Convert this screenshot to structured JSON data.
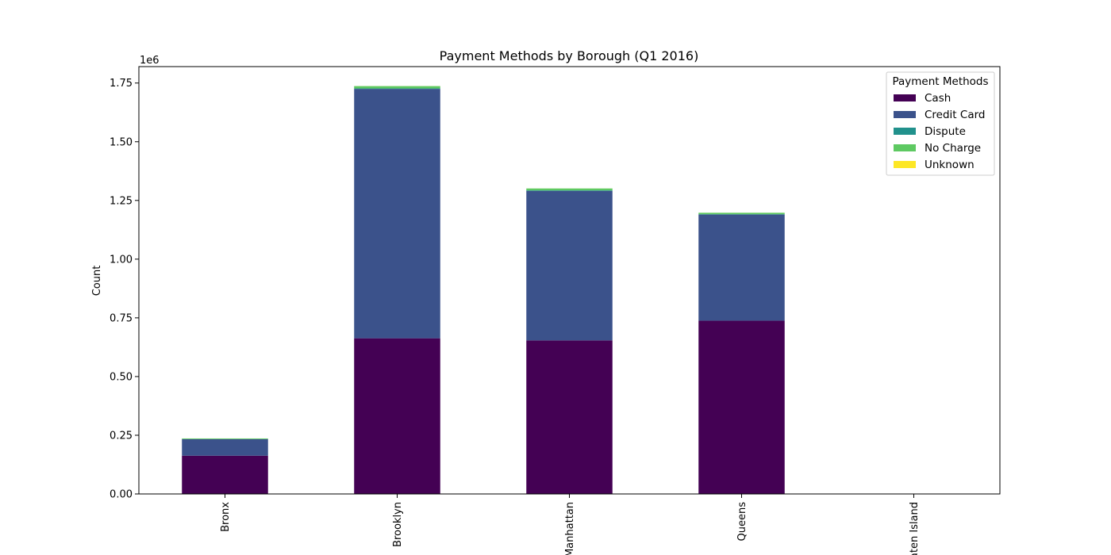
{
  "chart_data": {
    "type": "bar",
    "stacked": true,
    "title": "Payment Methods by Borough (Q1 2016)",
    "xlabel": "",
    "ylabel": "Count",
    "y_offset_text": "1e6",
    "ylim": [
      0,
      1820000
    ],
    "yticks": [
      0,
      250000,
      500000,
      750000,
      1000000,
      1250000,
      1500000,
      1750000
    ],
    "ytick_labels": [
      "0.00",
      "0.25",
      "0.50",
      "0.75",
      "1.00",
      "1.25",
      "1.50",
      "1.75"
    ],
    "categories": [
      "Bronx",
      "Brooklyn",
      "Manhattan",
      "Queens",
      "Staten Island"
    ],
    "series": [
      {
        "name": "Cash",
        "color": "#440154",
        "values": [
          163000,
          663000,
          654000,
          738000,
          400
        ]
      },
      {
        "name": "Credit Card",
        "color": "#3b528b",
        "values": [
          70000,
          1062000,
          637000,
          452000,
          200
        ]
      },
      {
        "name": "Dispute",
        "color": "#21918c",
        "values": [
          500,
          2000,
          2000,
          1500,
          0
        ]
      },
      {
        "name": "No Charge",
        "color": "#5ec962",
        "values": [
          3000,
          10000,
          8000,
          6000,
          0
        ]
      },
      {
        "name": "Unknown",
        "color": "#fde725",
        "values": [
          50,
          200,
          150,
          100,
          0
        ]
      }
    ],
    "legend": {
      "title": "Payment Methods",
      "placement": "top-right"
    },
    "grid": false
  }
}
